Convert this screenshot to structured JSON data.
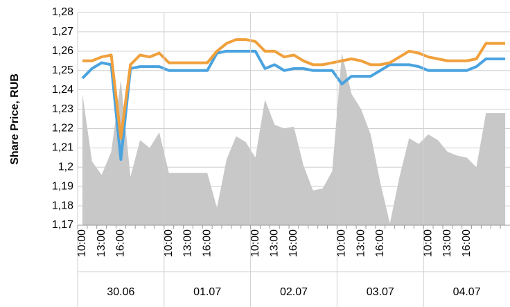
{
  "chart_data": {
    "type": "line",
    "y_label": "Share Price, RUB",
    "categories": [
      "10:00",
      null,
      "13:00",
      null,
      "16:00",
      null,
      null,
      null,
      null,
      "10:00",
      null,
      "13:00",
      null,
      "16:00",
      null,
      null,
      null,
      null,
      "10:00",
      null,
      "13:00",
      null,
      "16:00",
      null,
      null,
      null,
      null,
      "10:00",
      null,
      "13:00",
      null,
      "16:00",
      null,
      null,
      null,
      null,
      "10:00",
      null,
      "13:00",
      null,
      "16:00",
      null,
      null,
      null,
      null
    ],
    "category_groups": [
      {
        "label": "30.06",
        "count": 9
      },
      {
        "label": "01.07",
        "count": 9
      },
      {
        "label": "02.07",
        "count": 9
      },
      {
        "label": "03.07",
        "count": 9
      },
      {
        "label": "04.07",
        "count": 9
      }
    ],
    "series": [
      {
        "kind": "area",
        "color": "#c8c8c8",
        "values": [
          1.238,
          1.203,
          1.196,
          1.208,
          1.245,
          1.195,
          1.214,
          1.21,
          1.218,
          1.197,
          1.197,
          1.197,
          1.197,
          1.197,
          1.179,
          1.204,
          1.216,
          1.213,
          1.205,
          1.235,
          1.222,
          1.22,
          1.221,
          1.201,
          1.188,
          1.189,
          1.198,
          1.259,
          1.238,
          1.23,
          1.217,
          1.192,
          1.171,
          1.195,
          1.215,
          1.212,
          1.217,
          1.214,
          1.208,
          1.206,
          1.205,
          1.2,
          1.228,
          1.228,
          1.228
        ]
      },
      {
        "kind": "line",
        "color": "#4aa3df",
        "values": [
          1.246,
          1.251,
          1.254,
          1.253,
          1.204,
          1.251,
          1.252,
          1.252,
          1.252,
          1.25,
          1.25,
          1.25,
          1.25,
          1.25,
          1.259,
          1.26,
          1.26,
          1.26,
          1.26,
          1.251,
          1.253,
          1.25,
          1.251,
          1.251,
          1.25,
          1.25,
          1.25,
          1.243,
          1.247,
          1.247,
          1.247,
          1.25,
          1.253,
          1.253,
          1.253,
          1.252,
          1.25,
          1.25,
          1.25,
          1.25,
          1.25,
          1.252,
          1.256,
          1.256,
          1.256
        ]
      },
      {
        "kind": "line",
        "color": "#f0a03c",
        "values": [
          1.255,
          1.255,
          1.257,
          1.258,
          1.215,
          1.253,
          1.258,
          1.257,
          1.259,
          1.254,
          1.254,
          1.254,
          1.254,
          1.254,
          1.26,
          1.264,
          1.266,
          1.266,
          1.265,
          1.26,
          1.26,
          1.257,
          1.258,
          1.255,
          1.253,
          1.253,
          1.254,
          1.255,
          1.256,
          1.255,
          1.253,
          1.253,
          1.254,
          1.257,
          1.26,
          1.259,
          1.257,
          1.256,
          1.255,
          1.255,
          1.255,
          1.256,
          1.264,
          1.264,
          1.264
        ]
      }
    ],
    "ylim": [
      1.17,
      1.28
    ],
    "yticks": [
      {
        "value": 1.17,
        "label": "1,17"
      },
      {
        "value": 1.18,
        "label": "1,18"
      },
      {
        "value": 1.19,
        "label": "1,19"
      },
      {
        "value": 1.2,
        "label": "1,2"
      },
      {
        "value": 1.21,
        "label": "1,21"
      },
      {
        "value": 1.22,
        "label": "1,22"
      },
      {
        "value": 1.23,
        "label": "1,23"
      },
      {
        "value": 1.24,
        "label": "1,24"
      },
      {
        "value": 1.25,
        "label": "1,25"
      },
      {
        "value": 1.26,
        "label": "1,26"
      },
      {
        "value": 1.27,
        "label": "1,27"
      },
      {
        "value": 1.28,
        "label": "1,28"
      }
    ],
    "grid": true
  }
}
